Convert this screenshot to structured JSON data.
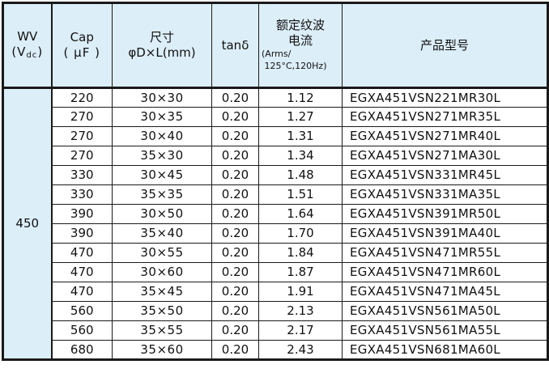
{
  "table": {
    "accent_color": "#dceef8",
    "border_color": "#1a1a1a",
    "header": {
      "wv": {
        "line1": "WV",
        "unit_open": "(V",
        "unit_sub": "dc",
        "unit_close": ")"
      },
      "cap": {
        "line1": "Cap",
        "line2": "( μF )"
      },
      "size": {
        "line1": "尺寸",
        "line2": "φD×L(mm)"
      },
      "tan_delta": {
        "line1": "tanδ"
      },
      "ripple": {
        "line1": "额定纹波",
        "line2": "电流",
        "line3": "(Arms/",
        "line4": " 125°C,120Hz)"
      },
      "model": {
        "line1": "产品型号"
      }
    },
    "wv_value": "450",
    "rows": [
      {
        "cap": "220",
        "size": "30×30",
        "tan_delta": "0.20",
        "ripple": "1.12",
        "model": "EGXA451VSN221MR30L"
      },
      {
        "cap": "270",
        "size": "30×35",
        "tan_delta": "0.20",
        "ripple": "1.27",
        "model": "EGXA451VSN271MR35L"
      },
      {
        "cap": "270",
        "size": "30×40",
        "tan_delta": "0.20",
        "ripple": "1.31",
        "model": "EGXA451VSN271MR40L"
      },
      {
        "cap": "270",
        "size": "35×30",
        "tan_delta": "0.20",
        "ripple": "1.34",
        "model": "EGXA451VSN271MA30L"
      },
      {
        "cap": "330",
        "size": "30×45",
        "tan_delta": "0.20",
        "ripple": "1.48",
        "model": "EGXA451VSN331MR45L"
      },
      {
        "cap": "330",
        "size": "35×35",
        "tan_delta": "0.20",
        "ripple": "1.51",
        "model": "EGXA451VSN331MA35L"
      },
      {
        "cap": "390",
        "size": "30×50",
        "tan_delta": "0.20",
        "ripple": "1.64",
        "model": "EGXA451VSN391MR50L"
      },
      {
        "cap": "390",
        "size": "35×40",
        "tan_delta": "0.20",
        "ripple": "1.70",
        "model": "EGXA451VSN391MA40L"
      },
      {
        "cap": "470",
        "size": "30×55",
        "tan_delta": "0.20",
        "ripple": "1.84",
        "model": "EGXA451VSN471MR55L"
      },
      {
        "cap": "470",
        "size": "30×60",
        "tan_delta": "0.20",
        "ripple": "1.87",
        "model": "EGXA451VSN471MR60L"
      },
      {
        "cap": "470",
        "size": "35×45",
        "tan_delta": "0.20",
        "ripple": "1.91",
        "model": "EGXA451VSN471MA45L"
      },
      {
        "cap": "560",
        "size": "35×50",
        "tan_delta": "0.20",
        "ripple": "2.13",
        "model": "EGXA451VSN561MA50L"
      },
      {
        "cap": "560",
        "size": "35×55",
        "tan_delta": "0.20",
        "ripple": "2.17",
        "model": "EGXA451VSN561MA55L"
      },
      {
        "cap": "680",
        "size": "35×60",
        "tan_delta": "0.20",
        "ripple": "2.43",
        "model": "EGXA451VSN681MA60L"
      }
    ]
  }
}
